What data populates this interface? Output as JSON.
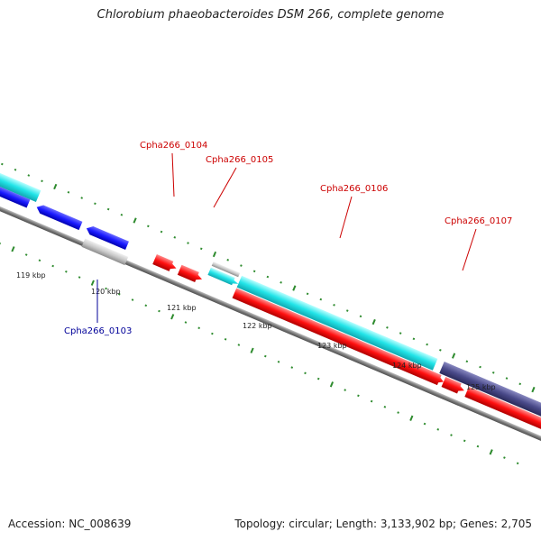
{
  "title": "Chlorobium phaeobacteroides DSM 266, complete genome",
  "footer": {
    "accession_label": "Accession:",
    "accession": "NC_008639",
    "topology_label": "Topology:",
    "topology": "circular",
    "length_label": "Length:",
    "length": "3,133,902 bp",
    "genes_label": "Genes:",
    "genes": "2,705"
  },
  "colors": {
    "forward_blue": "#1a1aff",
    "cyan": "#22e4e8",
    "red": "#ff1010",
    "grey": "#c8c8c8",
    "slate": "#4a4a8a",
    "tick_green": "#2e8b2e",
    "label_red": "#cc0000",
    "label_blue": "#000099",
    "backbone": "#808080"
  },
  "tick_labels": [
    "119 kbp",
    "120 kbp",
    "121 kbp",
    "122 kbp",
    "123 kbp",
    "124 kbp",
    "125 kbp"
  ],
  "gene_labels": [
    {
      "text": "Cpha266_0103",
      "color": "label_blue"
    },
    {
      "text": "Cpha266_0104",
      "color": "label_red"
    },
    {
      "text": "Cpha266_0105",
      "color": "label_red"
    },
    {
      "text": "Cpha266_0106",
      "color": "label_red"
    },
    {
      "text": "Cpha266_0107",
      "color": "label_red"
    }
  ]
}
